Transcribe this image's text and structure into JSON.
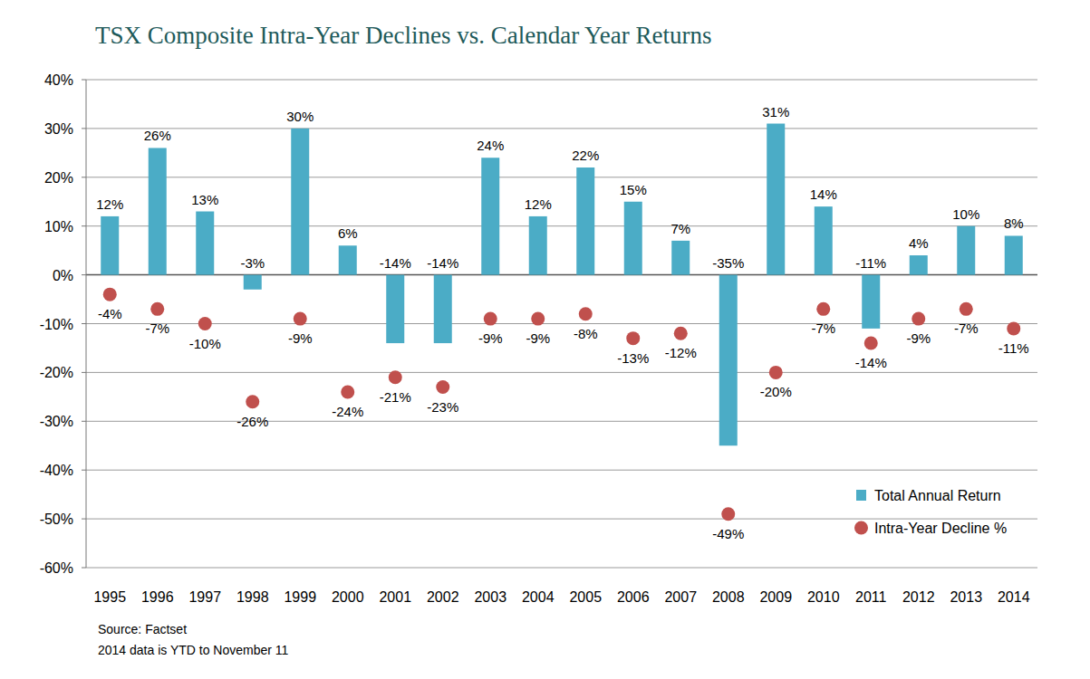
{
  "chart_data": {
    "type": "bar",
    "title": "TSX Composite Intra-Year Declines vs. Calendar Year Returns",
    "annotations": [
      "Source: Factset",
      "2014 data is YTD to November 11"
    ],
    "categories": [
      "1995",
      "1996",
      "1997",
      "1998",
      "1999",
      "2000",
      "2001",
      "2002",
      "2003",
      "2004",
      "2005",
      "2006",
      "2007",
      "2008",
      "2009",
      "2010",
      "2011",
      "2012",
      "2013",
      "2014"
    ],
    "series": [
      {
        "name": "Total Annual Return",
        "type": "bar",
        "color": "#4bacc6",
        "values": [
          12,
          26,
          13,
          -3,
          30,
          6,
          -14,
          -14,
          24,
          12,
          22,
          15,
          7,
          -35,
          31,
          14,
          -11,
          4,
          10,
          8
        ],
        "value_labels": [
          "12%",
          "26%",
          "13%",
          "-3%",
          "30%",
          "6%",
          "-14%",
          "-14%",
          "24%",
          "12%",
          "22%",
          "15%",
          "7%",
          "-35%",
          "31%",
          "14%",
          "-11%",
          "4%",
          "10%",
          "8%"
        ]
      },
      {
        "name": "Intra-Year Decline %",
        "type": "scatter",
        "color": "#c0504d",
        "marker": "circle",
        "values": [
          -4,
          -7,
          -10,
          -26,
          -9,
          -24,
          -21,
          -23,
          -9,
          -9,
          -8,
          -13,
          -12,
          -49,
          -20,
          -7,
          -14,
          -9,
          -7,
          -11
        ],
        "value_labels": [
          "-4%",
          "-7%",
          "-10%",
          "-26%",
          "-9%",
          "-24%",
          "-21%",
          "-23%",
          "-9%",
          "-9%",
          "-8%",
          "-13%",
          "-12%",
          "-49%",
          "-20%",
          "-7%",
          "-14%",
          "-9%",
          "-7%",
          "-11%"
        ]
      }
    ],
    "ylim": [
      -60,
      40
    ],
    "yticks": [
      {
        "value": 40,
        "label": "40%"
      },
      {
        "value": 30,
        "label": "30%"
      },
      {
        "value": 20,
        "label": "20%"
      },
      {
        "value": 10,
        "label": "10%"
      },
      {
        "value": 0,
        "label": "0%"
      },
      {
        "value": -10,
        "label": "-10%"
      },
      {
        "value": -20,
        "label": "-20%"
      },
      {
        "value": -30,
        "label": "-30%"
      },
      {
        "value": -40,
        "label": "-40%"
      },
      {
        "value": -50,
        "label": "-50%"
      },
      {
        "value": -60,
        "label": "-60%"
      }
    ],
    "grid": true,
    "data_labels": true,
    "legend": "lower right"
  }
}
